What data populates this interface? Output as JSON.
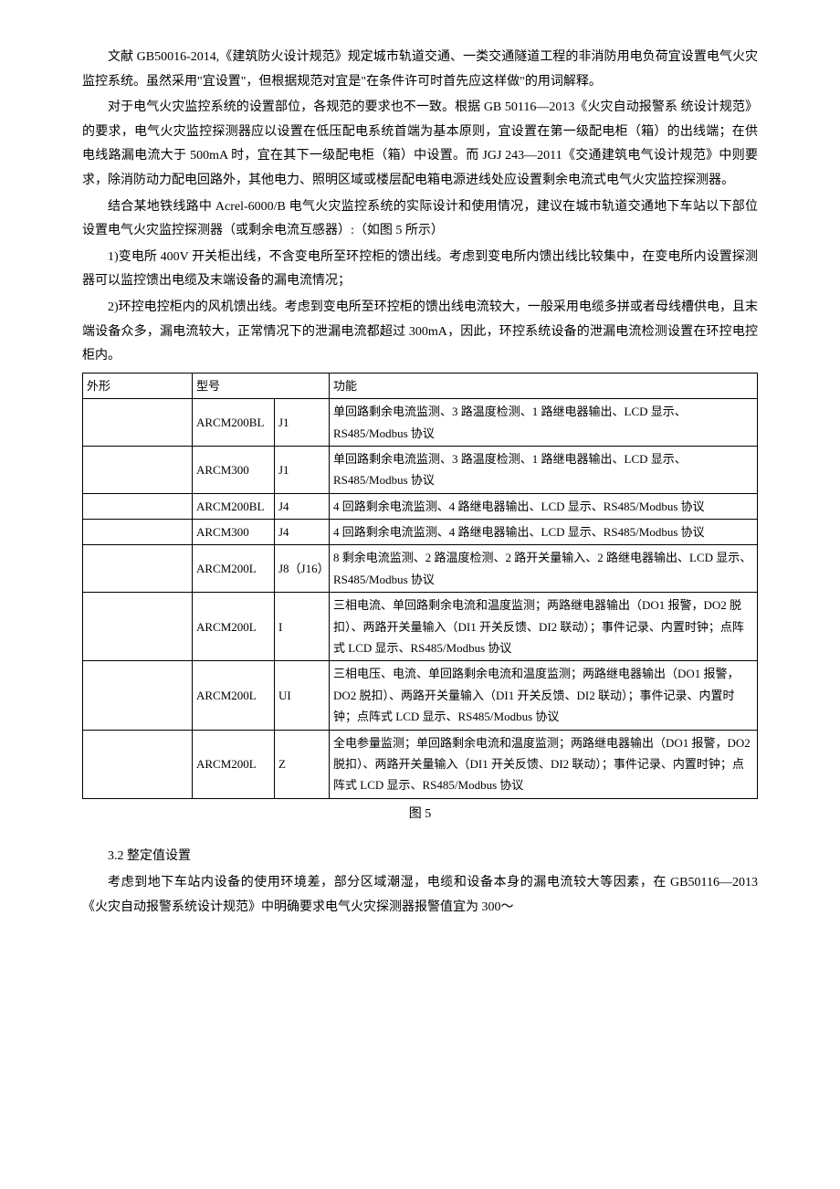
{
  "paragraphs": {
    "p1": "文献 GB50016-2014,《建筑防火设计规范》规定城市轨道交通、一类交通隧道工程的非消防用电负荷宜设置电气火灾监控系统。虽然采用\"宜设置\"，但根据规范对宜是\"在条件许可时首先应这样做\"的用词解释。",
    "p2": "对于电气火灾监控系统的设置部位，各规范的要求也不一致。根据 GB 50116—2013《火灾自动报警系 统设计规范》的要求，电气火灾监控探测器应以设置在低压配电系统首端为基本原则，宜设置在第一级配电柜（箱）的出线端；在供电线路漏电流大于 500mA 时，宜在其下一级配电柜（箱）中设置。而 JGJ 243—2011《交通建筑电气设计规范》中则要求，除消防动力配电回路外，其他电力、照明区域或楼层配电箱电源进线处应设置剩余电流式电气火灾监控探测器。",
    "p3": "结合某地铁线路中 Acrel-6000/B 电气火灾监控系统的实际设计和使用情况，建议在城市轨道交通地下车站以下部位设置电气火灾监控探测器（或剩余电流互感器）:（如图 5 所示）",
    "p4": "1)变电所 400V 开关柜出线，不含变电所至环控柜的馈出线。考虑到变电所内馈出线比较集中，在变电所内设置探测器可以监控馈出电缆及末端设备的漏电流情况；",
    "p5": "2)环控电控柜内的风机馈出线。考虑到变电所至环控柜的馈出线电流较大，一般采用电缆多拼或者母线槽供电，且末端设备众多，漏电流较大，正常情况下的泄漏电流都超过 300mA，因此，环控系统设备的泄漏电流检测设置在环控电控柜内。"
  },
  "table": {
    "headers": {
      "shape": "外形",
      "model": "型号",
      "func": "功能"
    },
    "rows": [
      {
        "shape": "",
        "model": "ARCM200BL",
        "code": "J1",
        "func": "单回路剩余电流监测、3 路温度检测、1 路继电器输出、LCD 显示、RS485/Modbus 协议"
      },
      {
        "shape": "",
        "model": "ARCM300",
        "code": "J1",
        "func": "单回路剩余电流监测、3 路温度检测、1 路继电器输出、LCD 显示、RS485/Modbus 协议"
      },
      {
        "shape": "",
        "model": "ARCM200BL",
        "code": "J4",
        "func": "4 回路剩余电流监测、4 路继电器输出、LCD 显示、RS485/Modbus 协议"
      },
      {
        "shape": "",
        "model": "ARCM300",
        "code": "J4",
        "func": "4 回路剩余电流监测、4 路继电器输出、LCD 显示、RS485/Modbus 协议"
      },
      {
        "shape": "",
        "model": "ARCM200L",
        "code": "J8（J16）",
        "func": "8 剩余电流监测、2 路温度检测、2 路开关量输入、2 路继电器输出、LCD 显示、RS485/Modbus 协议"
      },
      {
        "shape": "",
        "model": "ARCM200L",
        "code": "I",
        "func": "三相电流、单回路剩余电流和温度监测；两路继电器输出（DO1 报警，DO2 脱扣）、两路开关量输入（DI1 开关反馈、DI2 联动）；事件记录、内置时钟；点阵式 LCD 显示、RS485/Modbus 协议"
      },
      {
        "shape": "",
        "model": "ARCM200L",
        "code": "UI",
        "func": "三相电压、电流、单回路剩余电流和温度监测；两路继电器输出（DO1 报警，DO2 脱扣）、两路开关量输入（DI1 开关反馈、DI2 联动）；事件记录、内置时钟；点阵式 LCD 显示、RS485/Modbus 协议"
      },
      {
        "shape": "",
        "model": "ARCM200L",
        "code": "Z",
        "func": "全电参量监测；单回路剩余电流和温度监测；两路继电器输出（DO1 报警，DO2 脱扣）、两路开关量输入（DI1 开关反馈、DI2 联动）；事件记录、内置时钟；点阵式 LCD 显示、RS485/Modbus 协议"
      }
    ]
  },
  "figure_caption": "图 5",
  "section_heading": "3.2 整定值设置",
  "paragraphs_after": {
    "p6": "考虑到地下车站内设备的使用环境差，部分区域潮湿，电缆和设备本身的漏电流较大等因素，在 GB50116—2013《火灾自动报警系统设计规范》中明确要求电气火灾探测器报警值宜为 300～"
  }
}
